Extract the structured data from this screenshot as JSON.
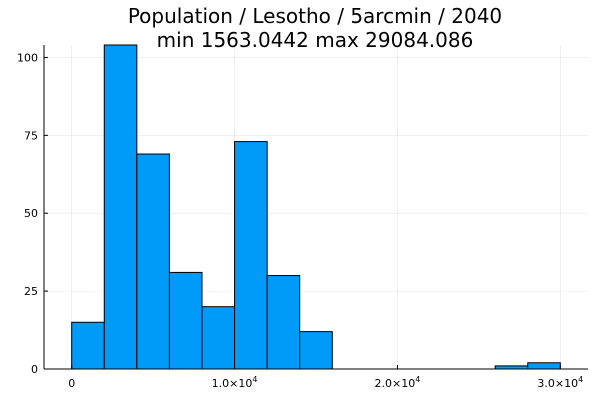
{
  "chart_data": {
    "type": "bar",
    "title_line1": "Population / Lesotho / 5arcmin / 2040",
    "title_line2": "min 1563.0442  max 29084.086",
    "xlabel": "",
    "ylabel": "",
    "xlim": [
      -1700,
      31700
    ],
    "ylim": [
      0,
      104
    ],
    "grid": true,
    "legend": "none",
    "bar_color": "#009AF9",
    "bins": [
      {
        "x0": 0,
        "x1": 2000,
        "count": 15
      },
      {
        "x0": 2000,
        "x1": 4000,
        "count": 104
      },
      {
        "x0": 4000,
        "x1": 6000,
        "count": 69
      },
      {
        "x0": 6000,
        "x1": 8000,
        "count": 31
      },
      {
        "x0": 8000,
        "x1": 10000,
        "count": 20
      },
      {
        "x0": 10000,
        "x1": 12000,
        "count": 73
      },
      {
        "x0": 12000,
        "x1": 14000,
        "count": 30
      },
      {
        "x0": 14000,
        "x1": 16000,
        "count": 12
      },
      {
        "x0": 16000,
        "x1": 18000,
        "count": 0
      },
      {
        "x0": 18000,
        "x1": 20000,
        "count": 0
      },
      {
        "x0": 20000,
        "x1": 22000,
        "count": 0
      },
      {
        "x0": 22000,
        "x1": 24000,
        "count": 0
      },
      {
        "x0": 24000,
        "x1": 26000,
        "count": 0
      },
      {
        "x0": 26000,
        "x1": 28000,
        "count": 1
      },
      {
        "x0": 28000,
        "x1": 30000,
        "count": 2
      }
    ],
    "y_ticks": [
      {
        "value": 0,
        "label": "0"
      },
      {
        "value": 25,
        "label": "25"
      },
      {
        "value": 50,
        "label": "50"
      },
      {
        "value": 75,
        "label": "75"
      },
      {
        "value": 100,
        "label": "100"
      }
    ],
    "x_ticks": [
      {
        "value": 0,
        "base": "0",
        "exp": ""
      },
      {
        "value": 10000,
        "base": "1.0×10",
        "exp": "4"
      },
      {
        "value": 20000,
        "base": "2.0×10",
        "exp": "4"
      },
      {
        "value": 30000,
        "base": "3.0×10",
        "exp": "4"
      }
    ]
  }
}
